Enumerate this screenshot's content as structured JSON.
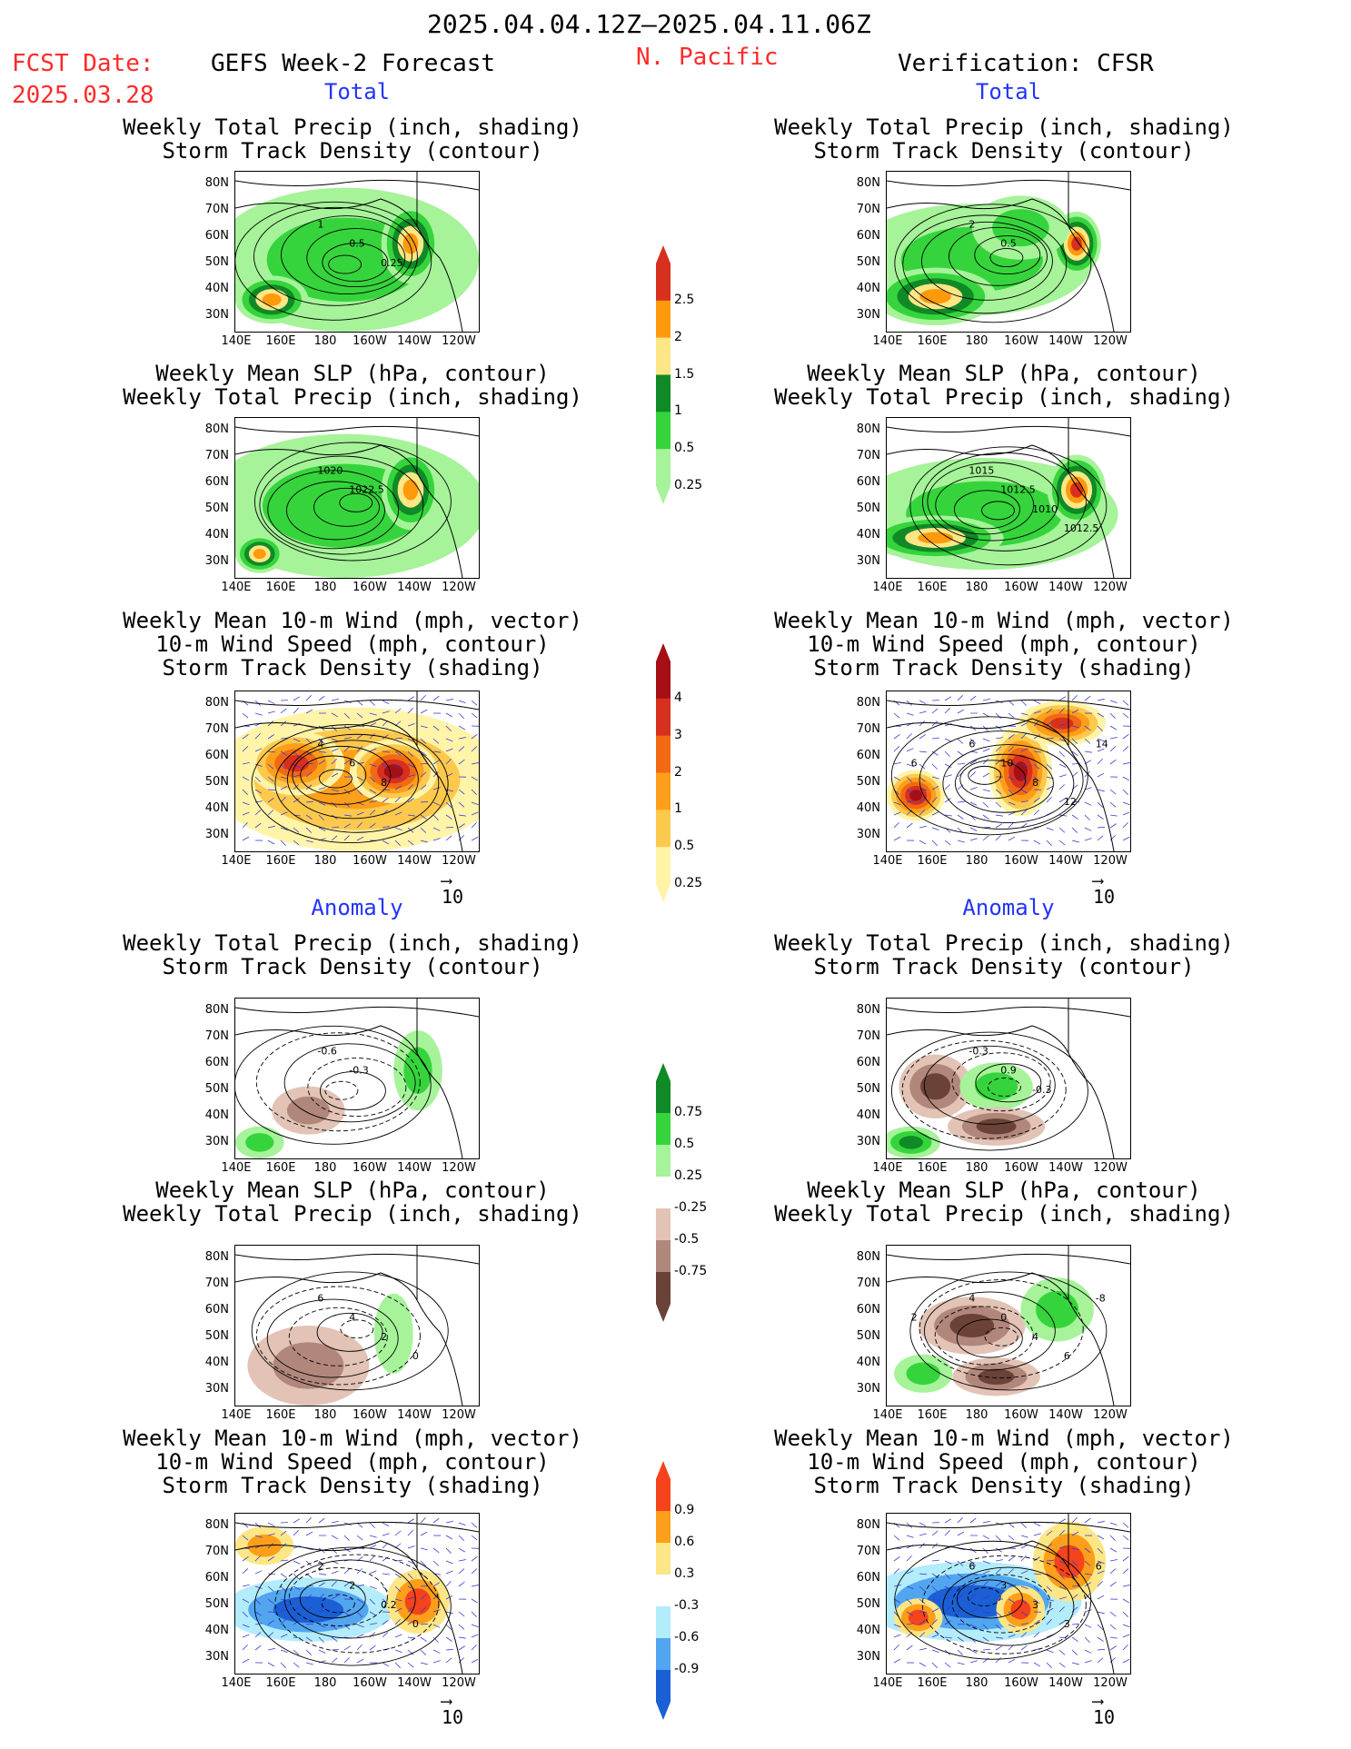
{
  "header": {
    "date_range": "2025.04.04.12Z–2025.04.11.06Z",
    "fcst_label": "FCST Date:",
    "fcst_date": "2025.03.28",
    "forecast_name": "GEFS Week-2 Forecast",
    "region": "N. Pacific",
    "verification": "Verification: CFSR"
  },
  "sections": {
    "total": "Total",
    "anomaly": "Anomaly"
  },
  "titles": {
    "precip_storm": [
      "Weekly Total Precip (inch, shading)",
      "Storm Track Density (contour)"
    ],
    "slp_precip": [
      "Weekly Mean SLP (hPa, contour)",
      "Weekly Total Precip (inch, shading)"
    ],
    "wind_storm": [
      "Weekly Mean 10-m Wind (mph, vector)",
      "10-m Wind Speed (mph, contour)",
      "Storm Track Density (shading)"
    ]
  },
  "axes": {
    "lat_ticks": [
      "80N",
      "70N",
      "60N",
      "50N",
      "40N",
      "30N"
    ],
    "lon_ticks": [
      "140E",
      "160E",
      "180",
      "160W",
      "140W",
      "120W"
    ],
    "vector_ref": "10"
  },
  "colorbars": {
    "precip_total": {
      "labels": [
        "2.5",
        "2",
        "1.5",
        "1",
        "0.5",
        "0.25"
      ],
      "colors": [
        "#d7301f",
        "#fe9a0c",
        "#fde685",
        "#0f8a26",
        "#36d43c",
        "#a6f39a"
      ]
    },
    "storm_total": {
      "labels": [
        "4",
        "3",
        "2",
        "1",
        "0.5",
        "0.25"
      ],
      "colors": [
        "#a50f15",
        "#d7301f",
        "#f16913",
        "#fd9f1a",
        "#fdc94d",
        "#fff4a8"
      ]
    },
    "precip_anom": {
      "labels": [
        "0.75",
        "0.5",
        "0.25",
        "-0.25",
        "-0.5",
        "-0.75"
      ],
      "colors": [
        "#0f8a26",
        "#36d43c",
        "#a6f39a",
        "#ffffff",
        "#e2c3b6",
        "#b1877b",
        "#6b4237"
      ]
    },
    "storm_anom": {
      "labels": [
        "0.9",
        "0.6",
        "0.3",
        "-0.3",
        "-0.6",
        "-0.9"
      ],
      "colors": [
        "#f5431b",
        "#fd9f1a",
        "#fde685",
        "#ffffff",
        "#b3ecfa",
        "#52a6f0",
        "#1b5fd4"
      ]
    }
  },
  "contour_labels": {
    "p1": [
      "1",
      "0.5",
      "0.25"
    ],
    "p2": [
      "2",
      "0.5"
    ],
    "p3": [
      "1020",
      "1022.5"
    ],
    "p4": [
      "1015",
      "1012.5",
      "1010",
      "1012.5"
    ],
    "p5": [
      "4",
      "6",
      "8"
    ],
    "p6": [
      "6",
      "10",
      "8",
      "12",
      "14",
      "6"
    ],
    "p7": [
      "-0.6",
      "-0.3"
    ],
    "p8": [
      "-0.3",
      "0.9",
      "-0.3"
    ],
    "p9": [
      "6",
      "4",
      "2",
      "0"
    ],
    "p10": [
      "4",
      "0",
      "4",
      "6",
      "-8",
      "2"
    ],
    "p11": [
      "2",
      "2",
      "0.2",
      "0"
    ],
    "p12": [
      "6",
      "3",
      "3",
      "3",
      "6"
    ]
  },
  "chart_data": [
    {
      "type": "heatmap",
      "panel": "GEFS Total Precip + Storm Track Density",
      "units": "inch",
      "title": [
        "Weekly Total Precip (inch, shading)",
        "Storm Track Density (contour)"
      ],
      "color_levels": [
        0.25,
        0.5,
        1,
        1.5,
        2,
        2.5
      ],
      "contour_values": [
        1,
        0.5,
        0.25
      ],
      "lat_range": [
        25,
        85
      ],
      "lon_range": [
        "140E",
        "120W"
      ]
    },
    {
      "type": "heatmap",
      "panel": "CFSR Total Precip + Storm Track Density",
      "units": "inch",
      "title": [
        "Weekly Total Precip (inch, shading)",
        "Storm Track Density (contour)"
      ],
      "color_levels": [
        0.25,
        0.5,
        1,
        1.5,
        2,
        2.5
      ],
      "contour_values": [
        2,
        0.5
      ]
    },
    {
      "type": "heatmap",
      "panel": "GEFS Total SLP + Precip",
      "units": "hPa / inch",
      "contour_values": [
        1020,
        1022.5
      ]
    },
    {
      "type": "heatmap",
      "panel": "CFSR Total SLP + Precip",
      "units": "hPa / inch",
      "contour_values": [
        1015,
        1012.5,
        1010,
        1012.5
      ]
    },
    {
      "type": "heatmap",
      "panel": "GEFS Total Wind + Storm Density",
      "color_levels": [
        0.25,
        0.5,
        1,
        2,
        3,
        4
      ],
      "contour_values": [
        4,
        6,
        8
      ],
      "vector_ref_mph": 10
    },
    {
      "type": "heatmap",
      "panel": "CFSR Total Wind + Storm Density",
      "color_levels": [
        0.25,
        0.5,
        1,
        2,
        3,
        4
      ],
      "contour_values": [
        6,
        10,
        8,
        12,
        14,
        6
      ],
      "vector_ref_mph": 10
    },
    {
      "type": "heatmap",
      "panel": "GEFS Anomaly Precip + Storm Density",
      "color_levels": [
        -0.75,
        -0.5,
        -0.25,
        0.25,
        0.5,
        0.75
      ],
      "contour_values": [
        -0.6,
        -0.3
      ]
    },
    {
      "type": "heatmap",
      "panel": "CFSR Anomaly Precip + Storm Density",
      "color_levels": [
        -0.75,
        -0.5,
        -0.25,
        0.25,
        0.5,
        0.75
      ],
      "contour_values": [
        -0.3,
        0.9,
        -0.3
      ]
    },
    {
      "type": "heatmap",
      "panel": "GEFS Anomaly SLP + Precip",
      "contour_values": [
        6,
        4,
        2,
        0
      ]
    },
    {
      "type": "heatmap",
      "panel": "CFSR Anomaly SLP + Precip",
      "contour_values": [
        4,
        0,
        4,
        6,
        -8,
        2
      ]
    },
    {
      "type": "heatmap",
      "panel": "GEFS Anomaly Wind + Storm Density",
      "color_levels": [
        -0.9,
        -0.6,
        -0.3,
        0.3,
        0.6,
        0.9
      ],
      "contour_values": [
        2,
        2,
        0.2,
        0
      ]
    },
    {
      "type": "heatmap",
      "panel": "CFSR Anomaly Wind + Storm Density",
      "color_levels": [
        -0.9,
        -0.6,
        -0.3,
        0.3,
        0.6,
        0.9
      ],
      "contour_values": [
        6,
        3,
        3,
        3,
        6
      ]
    }
  ]
}
